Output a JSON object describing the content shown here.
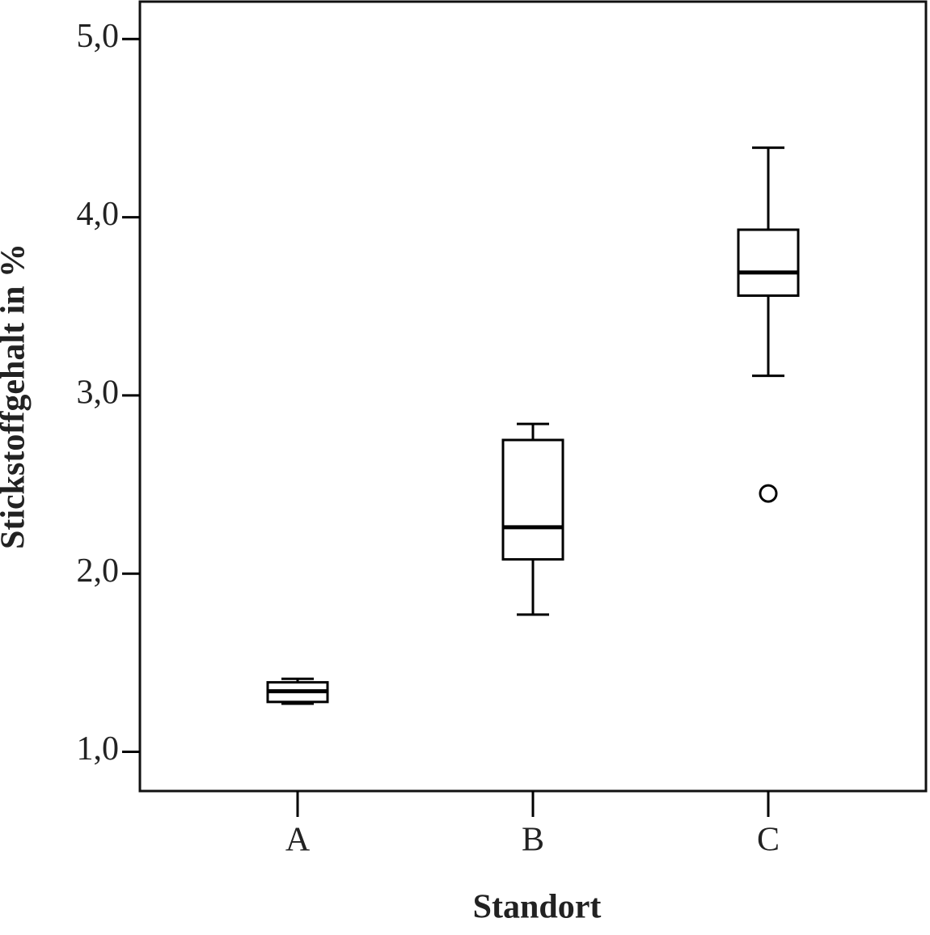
{
  "chart_data": {
    "type": "box",
    "x_label": "Standort",
    "y_label": "Stickstoffgehalt in %",
    "categories": [
      "A",
      "B",
      "C"
    ],
    "boxes": [
      {
        "min": 1.27,
        "q1": 1.28,
        "median": 1.34,
        "q3": 1.39,
        "max": 1.41,
        "outliers": []
      },
      {
        "min": 1.77,
        "q1": 2.08,
        "median": 2.26,
        "q3": 2.75,
        "max": 2.84,
        "outliers": []
      },
      {
        "min": 3.11,
        "q1": 3.56,
        "median": 3.69,
        "q3": 3.93,
        "max": 4.39,
        "outliers": [
          2.45
        ]
      }
    ],
    "color": "#000000",
    "ylim": [
      0.78,
      5.21
    ],
    "yticks": [
      {
        "value": 1,
        "label": "1,0"
      },
      {
        "value": 2,
        "label": "2,0"
      },
      {
        "value": 3,
        "label": "3,0"
      },
      {
        "value": 4,
        "label": "4,0"
      },
      {
        "value": 5,
        "label": "5,0"
      }
    ]
  }
}
